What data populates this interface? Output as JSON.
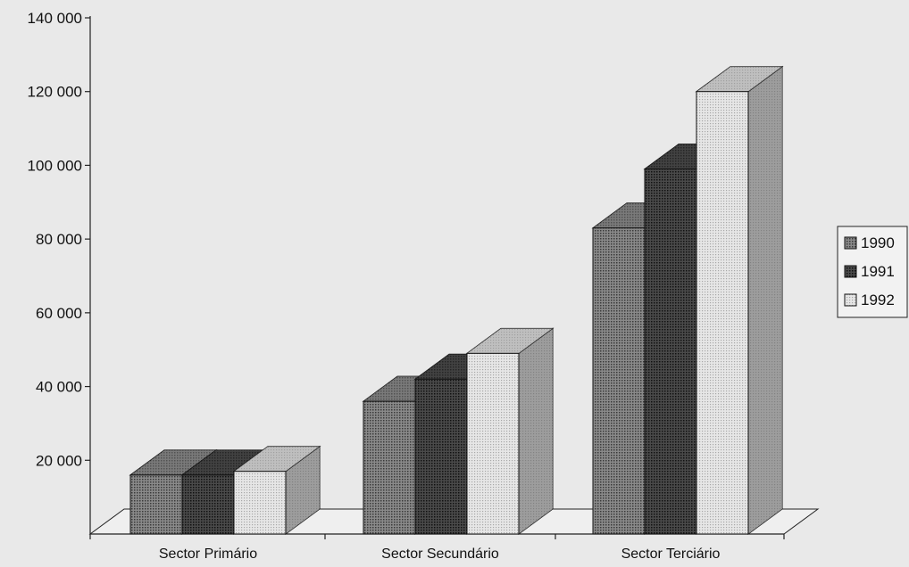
{
  "chart_data": {
    "type": "bar",
    "title": "",
    "xlabel": "",
    "ylabel": "",
    "ylim": [
      0,
      140000
    ],
    "y_ticks": [
      {
        "value": 20000,
        "label": "20 000"
      },
      {
        "value": 40000,
        "label": "40 000"
      },
      {
        "value": 60000,
        "label": "60 000"
      },
      {
        "value": 80000,
        "label": "80 000"
      },
      {
        "value": 100000,
        "label": "100 000"
      },
      {
        "value": 120000,
        "label": "120 000"
      },
      {
        "value": 140000,
        "label": "140 000"
      }
    ],
    "categories": [
      "Sector Primário",
      "Sector Secundário",
      "Sector Terciário"
    ],
    "series": [
      {
        "name": "1990",
        "values": [
          16000,
          36000,
          83000
        ],
        "color": "#6f6f6f"
      },
      {
        "name": "1991",
        "values": [
          16000,
          42000,
          99000
        ],
        "color": "#3c3c3c"
      },
      {
        "name": "1992",
        "values": [
          17000,
          49000,
          120000
        ],
        "color": "#d9d9d9"
      }
    ],
    "legend_position": "right",
    "grid": false,
    "three_d": true
  }
}
